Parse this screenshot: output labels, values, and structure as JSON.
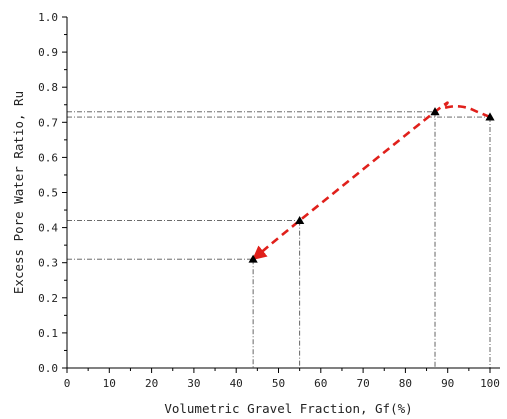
{
  "chart_data": {
    "type": "line",
    "xlabel": "Volumetric Gravel Fraction, Gf(%)",
    "ylabel": "Excess Pore Water Ratio, Ru",
    "xlim": [
      0,
      100
    ],
    "ylim": [
      0,
      1.0
    ],
    "x_ticks": [
      "0",
      "10",
      "20",
      "30",
      "40",
      "50",
      "60",
      "70",
      "80",
      "90",
      "100"
    ],
    "y_ticks": [
      "0.0",
      "0.1",
      "0.2",
      "0.3",
      "0.4",
      "0.5",
      "0.6",
      "0.7",
      "0.8",
      "0.9",
      "1.0"
    ],
    "grid": false,
    "points": [
      {
        "x": 44,
        "y": 0.31
      },
      {
        "x": 55,
        "y": 0.42
      },
      {
        "x": 87,
        "y": 0.73
      },
      {
        "x": 100,
        "y": 0.715
      }
    ],
    "trend_curve": [
      {
        "x": 44,
        "y": 0.31
      },
      {
        "x": 55,
        "y": 0.42
      },
      {
        "x": 87,
        "y": 0.73
      },
      {
        "x": 89,
        "y": 0.74
      },
      {
        "x": 91,
        "y": 0.745
      },
      {
        "x": 93,
        "y": 0.745
      },
      {
        "x": 95,
        "y": 0.74
      },
      {
        "x": 97,
        "y": 0.73
      },
      {
        "x": 100,
        "y": 0.715
      }
    ],
    "trend_color": "#e0201b",
    "marker_color": "#000000",
    "guide_line_color": "#555555",
    "guide_lines": "dash-dot from each point to both axes",
    "arrowhead": "at (44, 0.31), pointing down-left"
  }
}
